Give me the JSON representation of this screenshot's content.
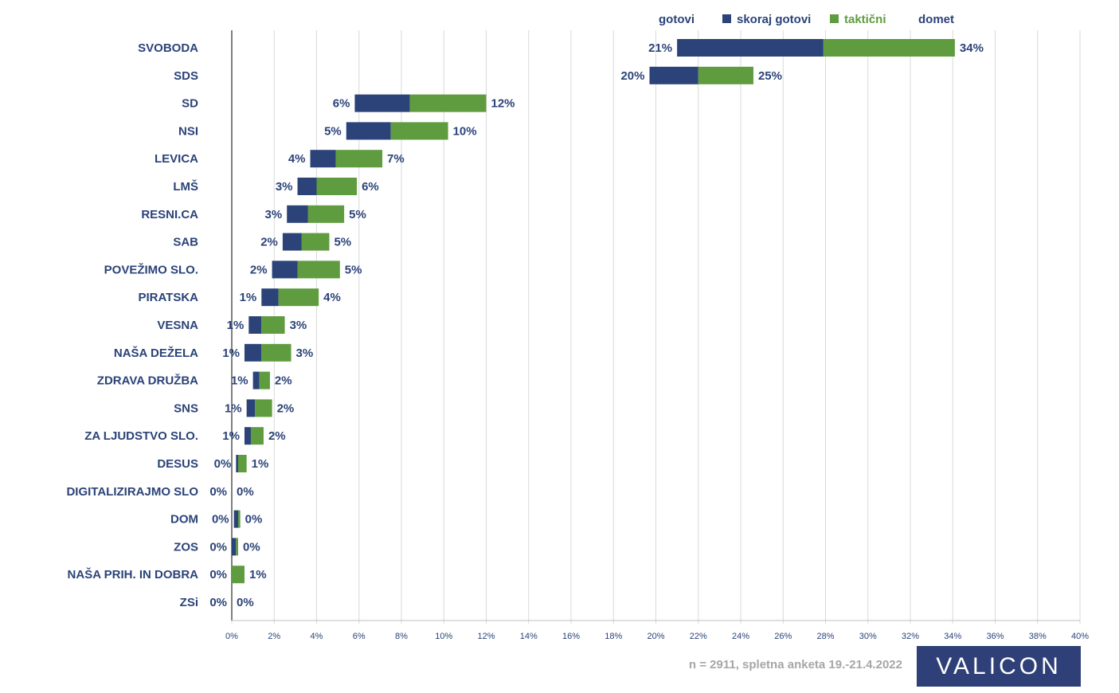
{
  "legend": {
    "items": [
      {
        "label": "gotovi",
        "swatch": false
      },
      {
        "label": "skoraj gotovi",
        "swatch": true,
        "color": "#2b4379"
      },
      {
        "label": "taktični",
        "swatch": true,
        "color": "#5f9b3f"
      },
      {
        "label": "domet",
        "swatch": false
      }
    ]
  },
  "footnote": "n = 2911, spletna anketa 19.-21.4.2022",
  "logo_text": "VALICON",
  "colors": {
    "label": "#2b4379",
    "skoraj": "#2b4379",
    "takticni": "#5f9b3f",
    "grid": "#d9d9d9",
    "axis": "#000000"
  },
  "chart_data": {
    "type": "bar",
    "orientation": "horizontal",
    "stacked": "floating",
    "title": "",
    "xlabel": "",
    "ylabel": "",
    "xlim": [
      0,
      40
    ],
    "x_ticks": [
      "0%",
      "2%",
      "4%",
      "6%",
      "8%",
      "10%",
      "12%",
      "14%",
      "16%",
      "18%",
      "20%",
      "22%",
      "24%",
      "26%",
      "28%",
      "30%",
      "32%",
      "34%",
      "36%",
      "38%",
      "40%"
    ],
    "grid": true,
    "legend_position": "top",
    "categories": [
      "SVOBODA",
      "SDS",
      "SD",
      "NSI",
      "LEVICA",
      "LMŠ",
      "RESNI.CA",
      "SAB",
      "POVEŽIMO SLO.",
      "PIRATSKA",
      "VESNA",
      "NAŠA DEŽELA",
      "ZDRAVA DRUŽBA",
      "SNS",
      "ZA LJUDSTVO SLO.",
      "DESUS",
      "DIGITALIZIRAJMO SLO",
      "DOM",
      "ZOS",
      "NAŠA PRIH. IN DOBRA",
      "ZSi"
    ],
    "series": [
      {
        "name": "gotovi",
        "values": [
          21,
          19.7,
          5.8,
          5.4,
          3.7,
          3.1,
          2.6,
          2.4,
          1.9,
          1.4,
          0.8,
          0.6,
          1.0,
          0.7,
          0.6,
          0.2,
          0.0,
          0.1,
          0.0,
          0.0,
          0.0
        ]
      },
      {
        "name": "skoraj gotovi",
        "values": [
          6.9,
          2.3,
          2.6,
          2.1,
          1.2,
          0.9,
          1.0,
          0.9,
          1.2,
          0.8,
          0.6,
          0.8,
          0.3,
          0.4,
          0.3,
          0.1,
          0.0,
          0.2,
          0.2,
          0.0,
          0.0
        ]
      },
      {
        "name": "taktični",
        "values": [
          6.2,
          2.6,
          3.6,
          2.7,
          2.2,
          1.9,
          1.7,
          1.3,
          2.0,
          1.9,
          1.1,
          1.4,
          0.5,
          0.8,
          0.6,
          0.4,
          0.0,
          0.1,
          0.1,
          0.6,
          0.0
        ]
      }
    ],
    "gotovi_labels": [
      "21%",
      "20%",
      "6%",
      "5%",
      "4%",
      "3%",
      "3%",
      "2%",
      "2%",
      "1%",
      "1%",
      "1%",
      "1%",
      "1%",
      "1%",
      "0%",
      "0%",
      "0%",
      "0%",
      "0%",
      "0%"
    ],
    "domet_labels": [
      "34%",
      "25%",
      "12%",
      "10%",
      "7%",
      "6%",
      "5%",
      "5%",
      "5%",
      "4%",
      "3%",
      "3%",
      "2%",
      "2%",
      "2%",
      "1%",
      "0%",
      "0%",
      "0%",
      "1%",
      "0%"
    ]
  }
}
